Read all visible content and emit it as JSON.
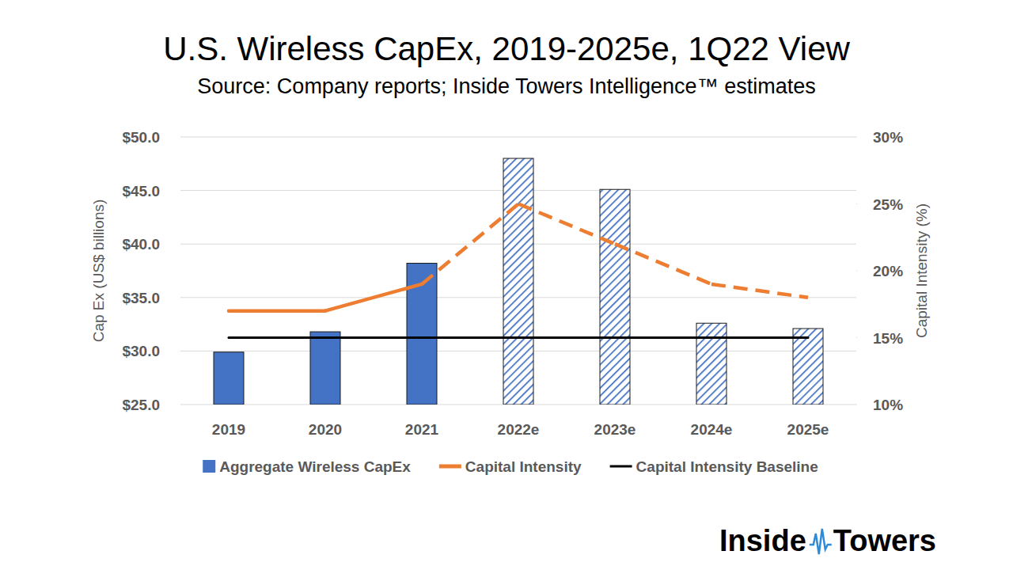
{
  "chart_data": {
    "type": "bar",
    "title": "U.S. Wireless CapEx, 2019-2025e, 1Q22 View",
    "subtitle": "Source: Company reports; Inside Towers Intelligence™ estimates",
    "categories": [
      "2019",
      "2020",
      "2021",
      "2022e",
      "2023e",
      "2024e",
      "2025e"
    ],
    "y_label": "Cap Ex (US$ billions)",
    "y2_label": "Capital Intensity (%)",
    "ylim": [
      25,
      50
    ],
    "yticks": [
      {
        "value": 25,
        "label": "$25.0"
      },
      {
        "value": 30,
        "label": "$30.0"
      },
      {
        "value": 35,
        "label": "$35.0"
      },
      {
        "value": 40,
        "label": "$40.0"
      },
      {
        "value": 45,
        "label": "$45.0"
      },
      {
        "value": 50,
        "label": "$50.0"
      }
    ],
    "y2lim": [
      10,
      30
    ],
    "y2ticks": [
      {
        "value": 10,
        "label": "10%"
      },
      {
        "value": 15,
        "label": "15%"
      },
      {
        "value": 20,
        "label": "20%"
      },
      {
        "value": 25,
        "label": "25%"
      },
      {
        "value": 30,
        "label": "30%"
      }
    ],
    "grid": true,
    "legend": "bottom",
    "series": [
      {
        "name": "Aggregate Wireless CapEx",
        "type": "bar",
        "color": "#4472c4",
        "values": [
          29.9,
          31.8,
          38.2,
          48.0,
          45.1,
          32.6,
          32.1
        ]
      },
      {
        "name": "Capital Intensity",
        "type": "line",
        "color": "#ed7d31",
        "axis": "y2",
        "line_style": "dashed",
        "values": [
          17,
          17,
          19,
          25,
          22,
          19,
          18
        ]
      },
      {
        "name": "Capital Intensity Baseline",
        "type": "line",
        "color": "#000000",
        "axis": "y2",
        "line_style": "solid",
        "values": [
          15,
          15,
          15,
          15,
          15,
          15,
          15
        ]
      }
    ]
  },
  "logo": "Inside Towers"
}
